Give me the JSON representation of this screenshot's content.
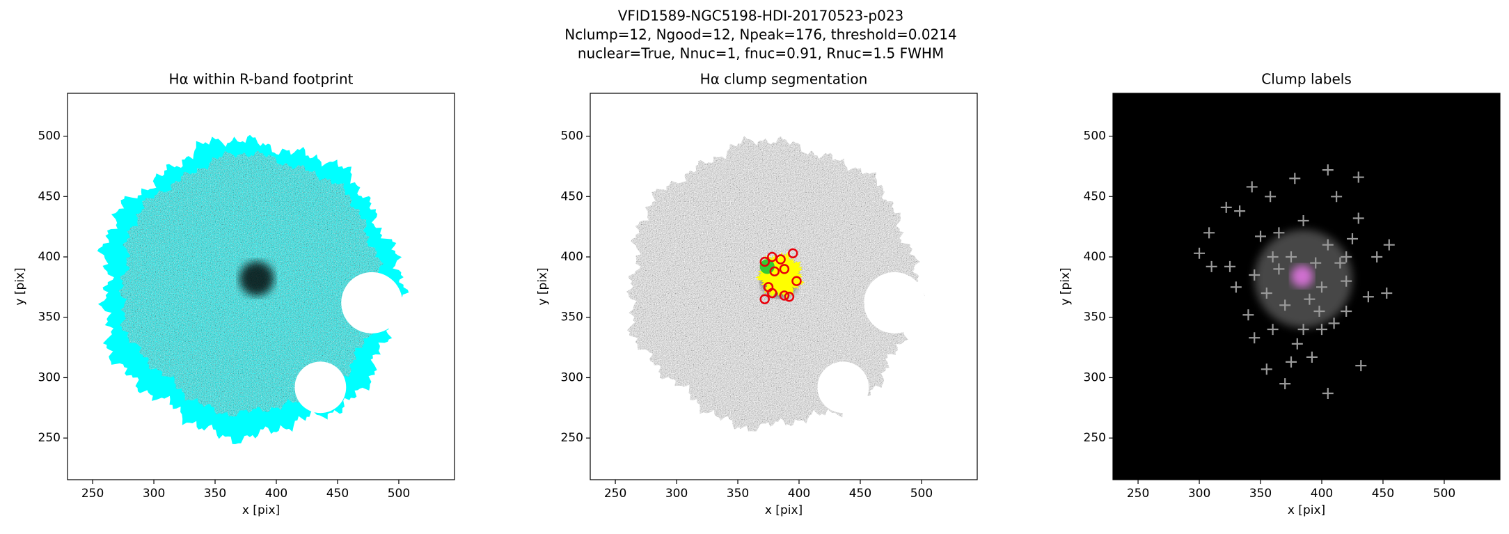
{
  "suptitle": [
    "VFID1589-NGC5198-HDI-20170523-p023",
    "Nclump=12, Ngood=12, Npeak=176, threshold=0.0214",
    "nuclear=True, Nnuc=1, fnuc=0.91, Rnuc=1.5 FWHM"
  ],
  "chart_data": [
    {
      "type": "image",
      "title": "Hα within R-band footprint",
      "xlabel": "x [pix]",
      "ylabel": "y [pix]",
      "xlim": [
        229.5,
        545.5
      ],
      "ylim": [
        215.5,
        535.5
      ],
      "xticks": [
        250,
        300,
        350,
        400,
        450,
        500
      ],
      "yticks": [
        250,
        300,
        350,
        400,
        450,
        500
      ]
    },
    {
      "type": "image",
      "title": "Hα clump segmentation",
      "xlabel": "x [pix]",
      "ylabel": "y [pix]",
      "xlim": [
        229.5,
        545.5
      ],
      "ylim": [
        215.5,
        535.5
      ],
      "xticks": [
        250,
        300,
        350,
        400,
        450,
        500
      ],
      "yticks": [
        250,
        300,
        350,
        400,
        450,
        500
      ],
      "clumps": {
        "color": "#e8000b",
        "x": [
          372,
          378,
          385,
          395,
          398,
          375,
          372,
          378,
          388,
          392,
          380,
          388
        ],
        "y": [
          396,
          400,
          398,
          403,
          380,
          375,
          365,
          370,
          368,
          367,
          388,
          390
        ]
      }
    },
    {
      "type": "scatter",
      "title": "Clump labels",
      "xlabel": "x [pix]",
      "ylabel": "y [pix]",
      "xlim": [
        229.5,
        545.5
      ],
      "ylim": [
        215.5,
        535.5
      ],
      "xticks": [
        250,
        300,
        350,
        400,
        450,
        500
      ],
      "yticks": [
        250,
        300,
        350,
        400,
        450,
        500
      ],
      "color": "#9a9a9a",
      "x": [
        300,
        308,
        310,
        322,
        325,
        330,
        333,
        343,
        340,
        345,
        350,
        355,
        358,
        360,
        365,
        370,
        375,
        378,
        380,
        385,
        392,
        398,
        405,
        405,
        412,
        415,
        420,
        420,
        425,
        430,
        430,
        432,
        438,
        445,
        453,
        455,
        365,
        375,
        395,
        400,
        405,
        355,
        370,
        390,
        360,
        410,
        400,
        345,
        420,
        385
      ],
      "y": [
        403,
        420,
        392,
        441,
        392,
        375,
        438,
        458,
        352,
        333,
        417,
        307,
        450,
        340,
        420,
        295,
        313,
        465,
        328,
        340,
        317,
        355,
        287,
        472,
        450,
        395,
        380,
        355,
        415,
        466,
        432,
        310,
        367,
        400,
        370,
        410,
        390,
        400,
        395,
        375,
        410,
        370,
        360,
        365,
        400,
        345,
        340,
        385,
        400,
        430
      ]
    }
  ]
}
